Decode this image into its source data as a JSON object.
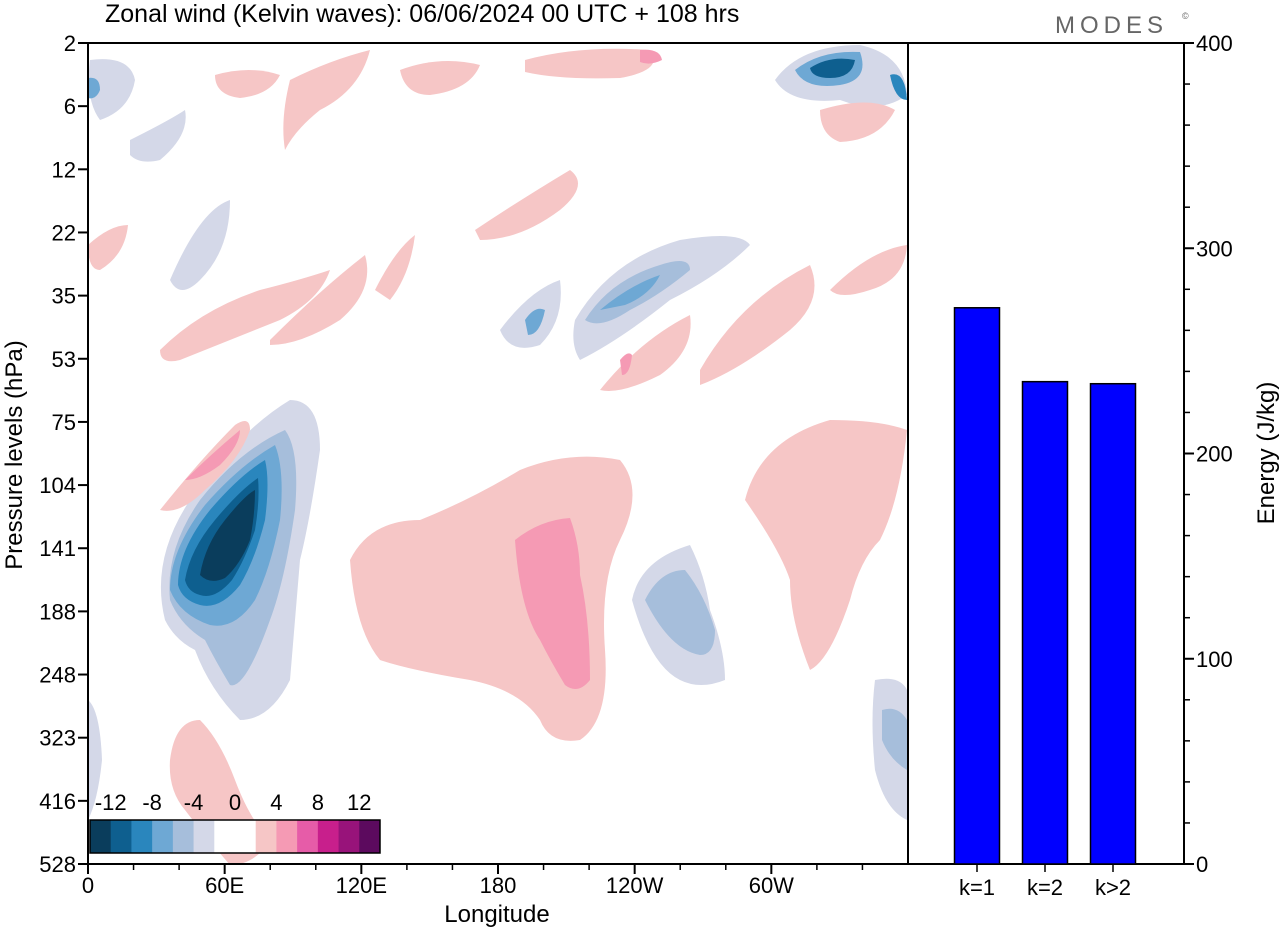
{
  "title": "Zonal wind (Kelvin waves):  06/06/2024  00 UTC  + 108 hrs",
  "logo": "MODES",
  "logo_mark": "©",
  "chart_data": [
    {
      "type": "heatmap",
      "xlabel": "Longitude",
      "ylabel": "Pressure levels (hPa)",
      "x_ticks": [
        "0",
        "60E",
        "120E",
        "180",
        "120W",
        "60W"
      ],
      "y_ticks": [
        "2",
        "6",
        "12",
        "22",
        "35",
        "53",
        "75",
        "104",
        "141",
        "188",
        "248",
        "323",
        "416",
        "528"
      ],
      "colorbar": {
        "labels": [
          "-12",
          "-8",
          "-4",
          "0",
          "4",
          "8",
          "12"
        ],
        "colors": [
          "#0a3d5c",
          "#0e5f8f",
          "#2a86bd",
          "#6ea8d4",
          "#a6bedb",
          "#d4d8e8",
          "#ffffff",
          "#ffffff",
          "#f6c6c6",
          "#f59ab4",
          "#e65ca8",
          "#c81f8c",
          "#98137a",
          "#5c0a5e"
        ]
      },
      "features": [
        {
          "lon": 60,
          "level": "141",
          "sign": "negative",
          "peak": -13
        },
        {
          "lon": 205,
          "level": "188",
          "sign": "positive",
          "peak": 5
        },
        {
          "lon": 255,
          "level": "188",
          "sign": "negative",
          "peak": -6
        },
        {
          "lon": 330,
          "level": "2",
          "sign": "negative",
          "peak": -10
        },
        {
          "lon": 245,
          "level": "35",
          "sign": "negative",
          "peak": -6
        },
        {
          "lon": 65,
          "level": "75",
          "sign": "positive",
          "peak": 6
        }
      ]
    },
    {
      "type": "bar",
      "categories": [
        "k=1",
        "k=2",
        "k>2"
      ],
      "values": [
        271,
        235,
        234
      ],
      "ylabel": "Energy (J/kg)",
      "ylim": [
        0,
        400
      ],
      "y_ticks": [
        "0",
        "100",
        "200",
        "300",
        "400"
      ],
      "bar_color": "#0000ff"
    }
  ]
}
